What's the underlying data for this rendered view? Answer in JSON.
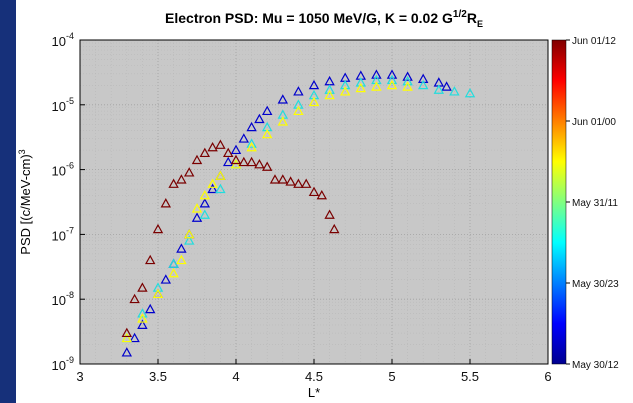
{
  "chart_data": {
    "type": "scatter",
    "title": "Electron PSD: Mu = 1050 MeV/G, K = 0.02 G",
    "title_sup": "1/2",
    "title_r": "R",
    "title_sub": "E",
    "xlabel": "L*",
    "ylabel": "PSD [(c/MeV-cm)",
    "ylabel_sup": "3",
    "xlim": [
      3,
      6
    ],
    "ylim": [
      1e-09,
      0.0001
    ],
    "yscale": "log",
    "grid": true,
    "x_ticks": [
      "3",
      "3.5",
      "4",
      "4.5",
      "5",
      "5.5",
      "6"
    ],
    "y_ticks": [
      {
        "base": "10",
        "exp": "-9"
      },
      {
        "base": "10",
        "exp": "-8"
      },
      {
        "base": "10",
        "exp": "-7"
      },
      {
        "base": "10",
        "exp": "-6"
      },
      {
        "base": "10",
        "exp": "-5"
      },
      {
        "base": "10",
        "exp": "-4"
      }
    ],
    "colorbar": {
      "ticks": [
        "Jun 01/12",
        "Jun 01/00",
        "May 31/11",
        "May 30/23",
        "May 30/12"
      ],
      "colors": [
        "#800000",
        "#ff0000",
        "#ffff00",
        "#00ffff",
        "#0000ff",
        "#00008f"
      ]
    },
    "series": [
      {
        "name": "",
        "color": "#0000cc",
        "x": [
          3.3,
          3.35,
          3.4,
          3.45,
          3.5,
          3.55,
          3.6,
          3.65,
          3.7,
          3.75,
          3.8,
          3.85,
          3.9,
          3.95,
          4.0,
          4.05,
          4.1,
          4.15,
          4.2,
          4.3,
          4.4,
          4.5,
          4.6,
          4.7,
          4.8,
          4.9,
          5.0,
          5.1,
          5.2,
          5.3,
          5.35
        ],
        "y": [
          1.5e-09,
          2.5e-09,
          4e-09,
          7e-09,
          1.2e-08,
          2e-08,
          3.5e-08,
          6e-08,
          1e-07,
          1.8e-07,
          3e-07,
          5e-07,
          8e-07,
          1.3e-06,
          2e-06,
          3e-06,
          4.5e-06,
          6e-06,
          8e-06,
          1.2e-05,
          1.6e-05,
          2e-05,
          2.3e-05,
          2.6e-05,
          2.8e-05,
          2.9e-05,
          2.9e-05,
          2.7e-05,
          2.5e-05,
          2.2e-05,
          1.9e-05
        ]
      },
      {
        "name": "",
        "color": "#22dddd",
        "x": [
          3.3,
          3.4,
          3.5,
          3.6,
          3.7,
          3.8,
          3.9,
          4.0,
          4.1,
          4.2,
          4.3,
          4.4,
          4.5,
          4.6,
          4.7,
          4.8,
          4.9,
          5.0,
          5.1,
          5.2,
          5.3,
          5.4,
          5.5
        ],
        "y": [
          2.5e-09,
          6e-09,
          1.5e-08,
          3.5e-08,
          8e-08,
          2e-07,
          5e-07,
          1.2e-06,
          2.5e-06,
          4.5e-06,
          7e-06,
          1e-05,
          1.4e-05,
          1.7e-05,
          2e-05,
          2.2e-05,
          2.4e-05,
          2.4e-05,
          2.3e-05,
          2e-05,
          1.7e-05,
          1.6e-05,
          1.5e-05
        ]
      },
      {
        "name": "",
        "color": "#ffff00",
        "x": [
          3.3,
          3.4,
          3.5,
          3.6,
          3.65,
          3.7,
          3.75,
          3.8,
          3.85,
          3.9,
          4.0,
          4.1,
          4.2,
          4.3,
          4.4,
          4.5,
          4.6,
          4.7,
          4.8,
          4.9,
          5.0,
          5.1
        ],
        "y": [
          2.5e-09,
          5e-09,
          1.2e-08,
          2.5e-08,
          4e-08,
          1e-07,
          2.5e-07,
          4e-07,
          6e-07,
          8e-07,
          1.2e-06,
          2.2e-06,
          3.5e-06,
          5.5e-06,
          8e-06,
          1.1e-05,
          1.4e-05,
          1.6e-05,
          1.8e-05,
          1.9e-05,
          2e-05,
          1.9e-05
        ]
      },
      {
        "name": "",
        "color": "#7a0000",
        "x": [
          3.3,
          3.35,
          3.4,
          3.45,
          3.5,
          3.55,
          3.6,
          3.65,
          3.7,
          3.75,
          3.8,
          3.85,
          3.9,
          3.95,
          4.0,
          4.05,
          4.1,
          4.15,
          4.2,
          4.25,
          4.3,
          4.35,
          4.4,
          4.45,
          4.5,
          4.55,
          4.6,
          4.63
        ],
        "y": [
          3e-09,
          1e-08,
          1.5e-08,
          4e-08,
          1.2e-07,
          3e-07,
          6e-07,
          7e-07,
          9e-07,
          1.4e-06,
          1.8e-06,
          2.2e-06,
          2.4e-06,
          1.8e-06,
          1.4e-06,
          1.3e-06,
          1.3e-06,
          1.2e-06,
          1.1e-06,
          7e-07,
          7e-07,
          6.5e-07,
          6e-07,
          6e-07,
          4.5e-07,
          4e-07,
          2e-07,
          1.2e-07
        ]
      }
    ]
  }
}
